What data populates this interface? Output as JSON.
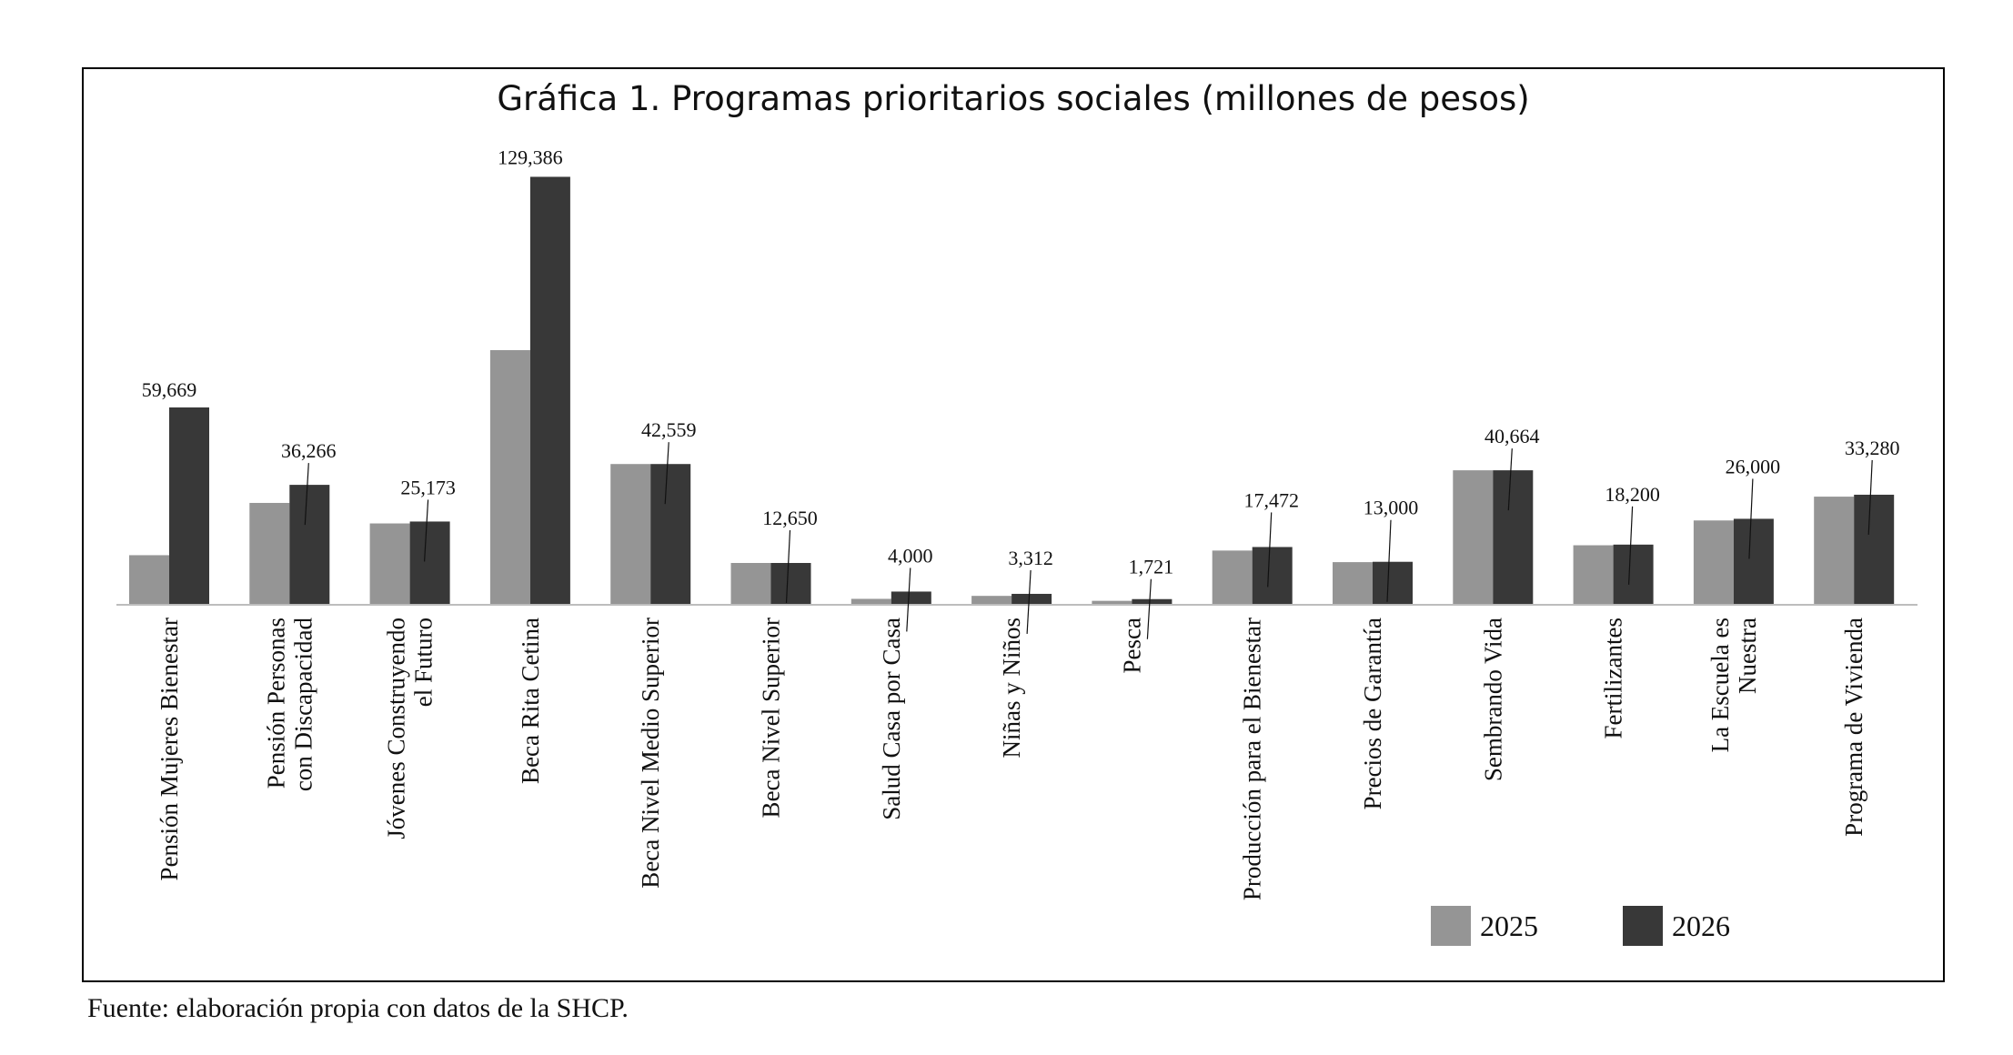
{
  "source_note": "Fuente: elaboración propia con datos de la SHCP.",
  "colors": {
    "s2025": "#959595",
    "s2026": "#383838",
    "axis": "#bdbdbd"
  },
  "chart_data": {
    "type": "bar",
    "title": "Gráfica 1. Programas prioritarios sociales (millones de pesos)",
    "xlabel": "",
    "ylabel": "",
    "ylim": [
      0,
      135000
    ],
    "grid": false,
    "legend_position": "bottom-right",
    "categories": [
      [
        "Pensión Mujeres Bienestar"
      ],
      [
        "Pensión Personas",
        "con Discapacidad"
      ],
      [
        "Jóvenes Construyendo",
        "el Futuro"
      ],
      [
        "Beca Rita Cetina"
      ],
      [
        "Beca Nivel Medio Superior"
      ],
      [
        "Beca Nivel Superior"
      ],
      [
        "Salud Casa por Casa"
      ],
      [
        "Niñas y Niños"
      ],
      [
        "Pesca"
      ],
      [
        "Producción para el Bienestar"
      ],
      [
        "Precios de Garantía"
      ],
      [
        "Sembrando Vida"
      ],
      [
        "Fertilizantes"
      ],
      [
        "La Escuela es",
        "Nuestra"
      ],
      [
        "Programa de Vivienda"
      ]
    ],
    "series": [
      {
        "name": "2025",
        "values": [
          15000,
          30800,
          24600,
          77000,
          42559,
          12650,
          1800,
          2700,
          1200,
          16400,
          12900,
          40664,
          18000,
          25500,
          32700
        ]
      },
      {
        "name": "2026",
        "values": [
          59669,
          36266,
          25173,
          129386,
          42559,
          12650,
          4000,
          3312,
          1721,
          17472,
          13000,
          40664,
          18200,
          26000,
          33280
        ]
      }
    ],
    "data_labels": [
      "59,669",
      "36,266",
      "25,173",
      "129,386",
      "42,559",
      "12,650",
      "4,000",
      "3,312",
      "1,721",
      "17,472",
      "13,000",
      "40,664",
      "18,200",
      "26,000",
      "33,280"
    ]
  }
}
